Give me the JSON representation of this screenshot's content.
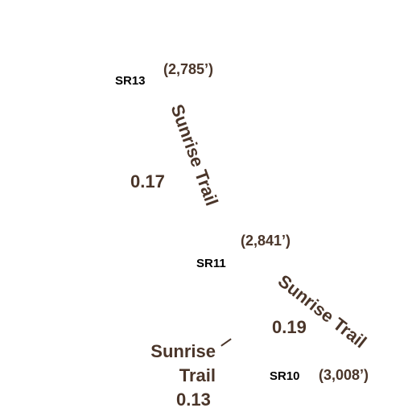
{
  "colors": {
    "label": "#4a3529",
    "junction": "#000000",
    "background": "#ffffff"
  },
  "junctions": [
    {
      "id": "SR13",
      "label": "SR13",
      "elevation": "(2,785’)"
    },
    {
      "id": "SR11",
      "label": "SR11",
      "elevation": "(2,841’)"
    },
    {
      "id": "SR10",
      "label": "SR10",
      "elevation": "(3,008’)"
    }
  ],
  "trails": [
    {
      "name": "Sunrise Trail",
      "distance": "0.17"
    },
    {
      "name": "Sunrise Trail",
      "distance": "0.19"
    },
    {
      "name_line1": "Sunrise",
      "name_line2": "Trail",
      "distance": "0.13"
    }
  ]
}
